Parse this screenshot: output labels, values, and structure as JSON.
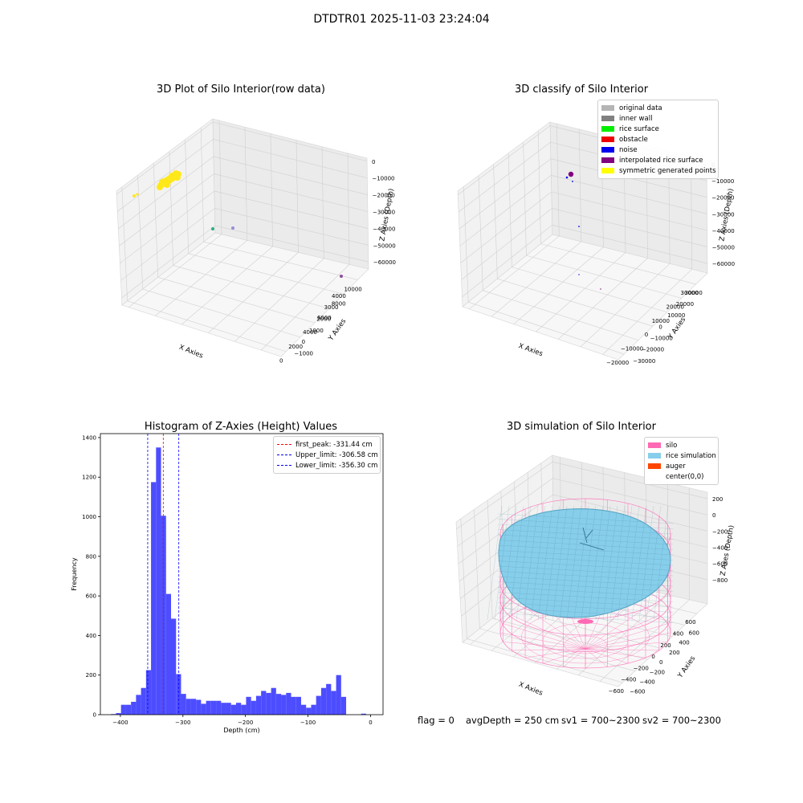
{
  "figure": {
    "suptitle": "DTDTR01 2025-11-03 23:24:04",
    "footer": {
      "flag": "flag = 0",
      "avg_depth": "avgDepth = 250 cm",
      "sv1": "sv1 = 700~2300",
      "sv2": "sv2 = 700~2300"
    }
  },
  "chart_data": [
    {
      "type": "scatter",
      "title": "3D Plot of Silo Interior(row data)",
      "xlabel": "X Axies",
      "ylabel": "Y Axies",
      "zlabel": "Z Axies (Depth)",
      "x_ticks": [
        "0",
        "2000",
        "4000",
        "6000",
        "8000",
        "10000"
      ],
      "y_ticks": [
        "−1000",
        "0",
        "1000",
        "2000",
        "3000",
        "4000"
      ],
      "z_ticks": [
        "0",
        "−10000",
        "−20000",
        "−30000",
        "−40000",
        "−50000",
        "−60000"
      ],
      "grid": true,
      "points": [
        {
          "label": "cluster",
          "color": "#ffe81a",
          "desc": "dense yellow cluster near top-left"
        },
        {
          "label": "outlier",
          "color": "#ffe81a"
        },
        {
          "label": "outlier",
          "color": "#2ab07f"
        },
        {
          "label": "outlier",
          "color": "#9e8ad8"
        },
        {
          "label": "outlier",
          "color": "#8b4f9e"
        }
      ]
    },
    {
      "type": "scatter",
      "title": "3D classify of Silo Interior",
      "xlabel": "X Axies",
      "ylabel": "Y Axies",
      "zlabel": "Z Axies (Depth)",
      "x_ticks": [
        "−20000",
        "−10000",
        "0",
        "10000",
        "20000",
        "30000"
      ],
      "y_ticks": [
        "−30000",
        "−20000",
        "−10000",
        "0",
        "10000",
        "20000",
        "30000"
      ],
      "z_ticks": [
        "0",
        "−10000",
        "−20000",
        "−30000",
        "−40000",
        "−50000",
        "−60000"
      ],
      "grid": true,
      "legend": [
        {
          "label": "original data",
          "color": "#b5b5b5"
        },
        {
          "label": "inner wall",
          "color": "#808080"
        },
        {
          "label": "rice surface",
          "color": "#00ee00"
        },
        {
          "label": "obstacle",
          "color": "#ee0000"
        },
        {
          "label": "noise",
          "color": "#0000ee"
        },
        {
          "label": "interpolated rice surface",
          "color": "#800080"
        },
        {
          "label": "symmetric generated points",
          "color": "#ffff00"
        }
      ]
    },
    {
      "type": "bar",
      "title": "Histogram of Z-Axies (Height) Values",
      "xlabel": "Depth (cm)",
      "ylabel": "Frequency",
      "xlim": [
        -432,
        20
      ],
      "ylim": [
        0,
        1420
      ],
      "x_ticks": [
        -400,
        -300,
        -200,
        -100,
        0
      ],
      "y_ticks": [
        0,
        200,
        400,
        600,
        800,
        1000,
        1200,
        1400
      ],
      "bar_color": "#4d4dff",
      "bin_edges": [
        -415,
        -407,
        -399,
        -391,
        -383,
        -375,
        -367,
        -359,
        -351,
        -343,
        -335,
        -327,
        -319,
        -311,
        -303,
        -295,
        -287,
        -279,
        -271,
        -263,
        -255,
        -247,
        -239,
        -231,
        -223,
        -215,
        -207,
        -199,
        -191,
        -183,
        -175,
        -167,
        -159,
        -151,
        -143,
        -135,
        -127,
        -119,
        -111,
        -103,
        -95,
        -87,
        -79,
        -71,
        -63,
        -55,
        -47,
        -39,
        -31,
        -23,
        -15,
        -7,
        1
      ],
      "counts": [
        3,
        8,
        50,
        50,
        65,
        100,
        135,
        225,
        1175,
        1350,
        1005,
        610,
        485,
        205,
        105,
        80,
        80,
        75,
        55,
        70,
        70,
        70,
        60,
        60,
        50,
        60,
        50,
        90,
        70,
        95,
        120,
        110,
        135,
        105,
        100,
        110,
        90,
        90,
        50,
        35,
        50,
        95,
        135,
        155,
        120,
        200,
        90,
        0,
        0,
        0,
        5,
        0
      ],
      "lines": [
        {
          "label": "first_peak: -331.44 cm",
          "value": -331.44,
          "color": "#ff0000"
        },
        {
          "label": "Upper_limit: -306.58 cm",
          "value": -306.58,
          "color": "#0000ff"
        },
        {
          "label": "Lower_limit: -356.30 cm",
          "value": -356.3,
          "color": "#0000ff"
        }
      ]
    },
    {
      "type": "surface",
      "title": "3D simulation of Silo Interior",
      "xlabel": "X Axies",
      "ylabel": "Y Axies",
      "zlabel": "Z Axes (Depth)",
      "x_ticks": [
        "−600",
        "−400",
        "−200",
        "0",
        "200",
        "400",
        "600"
      ],
      "y_ticks": [
        "−600",
        "−400",
        "−200",
        "0",
        "200",
        "400",
        "600"
      ],
      "z_ticks": [
        "200",
        "0",
        "−200",
        "−400",
        "−600",
        "−800"
      ],
      "grid": true,
      "legend": [
        {
          "label": "silo",
          "color": "#ff69b4"
        },
        {
          "label": "rice simulation",
          "color": "#87ceeb"
        },
        {
          "label": "auger",
          "color": "#ff4500"
        },
        {
          "label": "center(0,0)",
          "color": "#ffffff"
        }
      ]
    }
  ]
}
